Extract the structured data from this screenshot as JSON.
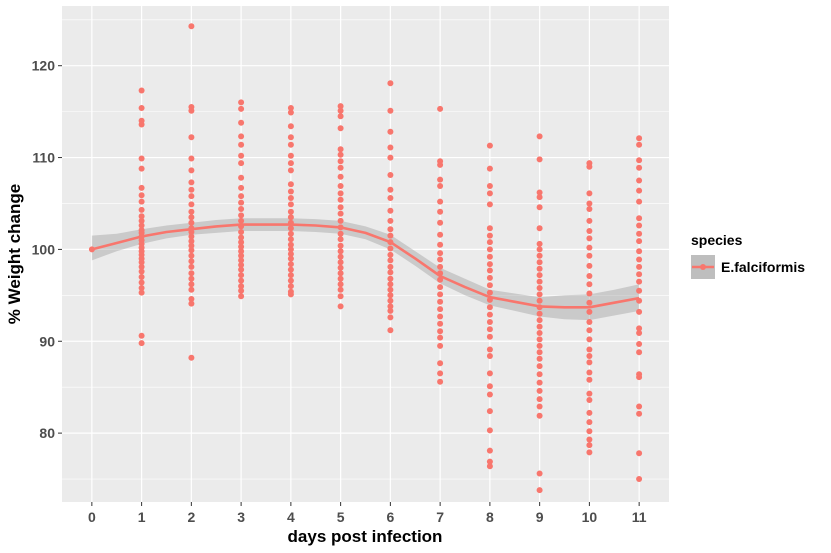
{
  "chart_data": {
    "type": "scatter",
    "xlabel": "days post infection",
    "ylabel": "% Weight change",
    "x_ticks": [
      "0",
      "1",
      "2",
      "3",
      "4",
      "5",
      "6",
      "7",
      "8",
      "9",
      "10",
      "11"
    ],
    "y_ticks": [
      "80",
      "90",
      "100",
      "110",
      "120"
    ],
    "xlim": [
      -0.6,
      11.6
    ],
    "ylim": [
      72.5,
      126.5
    ],
    "grid": true,
    "legend": {
      "title": "species",
      "position": "right",
      "entries": [
        "E.falciformis"
      ]
    },
    "colors": {
      "series": "#f8766d",
      "panel": "#ebebeb",
      "grid": "#ffffff",
      "ribbon": "#bebebe"
    },
    "series": [
      {
        "name": "E.falciformis",
        "points": [
          {
            "day": 0,
            "values": [
              100.0
            ]
          },
          {
            "day": 1,
            "values": [
              117.3,
              115.4,
              114.0,
              113.6,
              109.9,
              108.8,
              106.7,
              105.9,
              105.2,
              104.3,
              103.6,
              103.1,
              102.6,
              102.1,
              101.8,
              101.4,
              101.0,
              100.6,
              100.2,
              99.8,
              99.4,
              99.0,
              98.6,
              98.1,
              97.6,
              97.0,
              96.4,
              95.8,
              95.3,
              90.6,
              89.8
            ]
          },
          {
            "day": 2,
            "values": [
              124.3,
              115.5,
              115.1,
              112.2,
              109.9,
              108.6,
              107.3,
              106.5,
              105.8,
              104.9,
              104.1,
              103.5,
              102.9,
              102.3,
              101.9,
              101.4,
              100.9,
              100.4,
              99.9,
              99.3,
              98.7,
              98.1,
              97.4,
              96.8,
              96.2,
              95.6,
              94.6,
              94.1,
              88.2
            ]
          },
          {
            "day": 3,
            "values": [
              116.0,
              115.3,
              113.8,
              112.3,
              111.4,
              110.2,
              109.4,
              107.8,
              106.7,
              105.8,
              105.1,
              104.4,
              103.7,
              103.1,
              102.5,
              101.9,
              101.3,
              100.8,
              100.3,
              99.8,
              99.3,
              98.8,
              98.3,
              97.8,
              97.2,
              96.6,
              96.0,
              95.5,
              94.9
            ]
          },
          {
            "day": 4,
            "values": [
              115.4,
              114.9,
              113.4,
              112.2,
              111.4,
              110.2,
              109.4,
              108.6,
              107.1,
              106.3,
              105.6,
              104.9,
              104.1,
              103.5,
              102.9,
              102.3,
              101.7,
              101.1,
              100.5,
              100.0,
              99.5,
              99.0,
              98.4,
              97.8,
              97.2,
              96.6,
              96.0,
              95.4,
              95.1
            ]
          },
          {
            "day": 5,
            "values": [
              115.6,
              115.1,
              114.5,
              113.2,
              110.9,
              110.3,
              109.6,
              108.9,
              107.9,
              106.9,
              106.1,
              105.4,
              104.6,
              103.9,
              103.1,
              102.4,
              101.7,
              101.1,
              100.4,
              99.8,
              99.2,
              98.6,
              98.0,
              97.4,
              96.8,
              96.2,
              95.6,
              94.9,
              93.8
            ]
          },
          {
            "day": 6,
            "values": [
              118.1,
              115.1,
              112.8,
              111.1,
              110.0,
              108.1,
              106.5,
              105.6,
              104.2,
              103.1,
              102.2,
              101.5,
              100.8,
              100.1,
              99.4,
              98.8,
              98.1,
              97.5,
              96.8,
              96.2,
              95.6,
              95.0,
              94.4,
              93.8,
              93.3,
              92.6,
              91.2
            ]
          },
          {
            "day": 7,
            "values": [
              115.3,
              109.6,
              109.2,
              107.6,
              106.9,
              105.2,
              104.1,
              102.9,
              101.6,
              100.5,
              99.6,
              98.9,
              98.1,
              97.4,
              96.7,
              95.9,
              95.1,
              94.3,
              93.5,
              92.7,
              91.9,
              91.1,
              90.4,
              89.5,
              87.6,
              86.5,
              85.6
            ]
          },
          {
            "day": 8,
            "values": [
              111.3,
              108.8,
              106.9,
              106.1,
              104.9,
              102.3,
              101.5,
              100.8,
              100.0,
              99.2,
              98.4,
              97.7,
              96.9,
              96.1,
              95.3,
              94.5,
              93.7,
              92.9,
              92.1,
              91.3,
              90.5,
              89.1,
              88.4,
              86.5,
              85.1,
              84.2,
              82.4,
              80.3,
              78.1,
              76.9,
              76.4
            ]
          },
          {
            "day": 9,
            "values": [
              112.3,
              109.8,
              106.2,
              105.7,
              104.6,
              102.3,
              100.6,
              100.0,
              99.3,
              98.6,
              97.9,
              97.2,
              96.5,
              95.8,
              95.1,
              94.4,
              93.7,
              93.0,
              92.3,
              91.6,
              90.9,
              90.2,
              89.5,
              88.8,
              88.1,
              87.3,
              86.4,
              85.5,
              84.6,
              83.7,
              82.9,
              81.9,
              75.6,
              73.8
            ]
          },
          {
            "day": 10,
            "values": [
              109.4,
              109.0,
              106.1,
              105.0,
              104.4,
              103.1,
              102.0,
              101.2,
              100.2,
              99.3,
              98.2,
              97.1,
              96.2,
              95.2,
              94.2,
              93.2,
              92.1,
              91.2,
              90.2,
              89.1,
              88.4,
              87.7,
              86.6,
              85.8,
              84.3,
              83.6,
              82.2,
              81.2,
              80.2,
              79.3,
              78.7,
              77.9
            ]
          },
          {
            "day": 11,
            "values": [
              112.1,
              111.4,
              109.7,
              108.9,
              107.5,
              106.4,
              105.2,
              103.4,
              102.6,
              101.7,
              100.9,
              99.8,
              98.9,
              98.1,
              97.3,
              96.5,
              95.5,
              94.4,
              93.2,
              91.4,
              90.9,
              89.7,
              88.8,
              86.4,
              86.1,
              82.9,
              82.1,
              77.8,
              75.0
            ]
          }
        ],
        "smooth": {
          "x": [
            0,
            0.5,
            1,
            1.5,
            2,
            2.5,
            3,
            3.5,
            4,
            4.5,
            5,
            5.5,
            6,
            6.5,
            7,
            7.5,
            8,
            8.5,
            9,
            9.5,
            10,
            10.5,
            11
          ],
          "y": [
            100.0,
            100.7,
            101.4,
            101.9,
            102.2,
            102.5,
            102.7,
            102.7,
            102.7,
            102.6,
            102.4,
            101.8,
            100.8,
            99.0,
            97.1,
            95.9,
            94.8,
            94.3,
            93.8,
            93.7,
            93.7,
            94.2,
            94.7
          ],
          "lower": [
            98.8,
            99.8,
            100.6,
            101.2,
            101.6,
            101.8,
            102.0,
            102.0,
            102.0,
            101.9,
            101.7,
            101.1,
            100.0,
            98.2,
            96.3,
            95.0,
            93.9,
            93.3,
            92.7,
            92.4,
            92.3,
            92.8,
            93.3
          ],
          "upper": [
            101.5,
            101.7,
            102.2,
            102.6,
            102.9,
            103.2,
            103.4,
            103.4,
            103.4,
            103.3,
            103.1,
            102.5,
            101.6,
            99.8,
            98.0,
            96.8,
            95.6,
            95.2,
            94.8,
            95.0,
            95.1,
            95.6,
            96.2
          ]
        }
      }
    ]
  }
}
